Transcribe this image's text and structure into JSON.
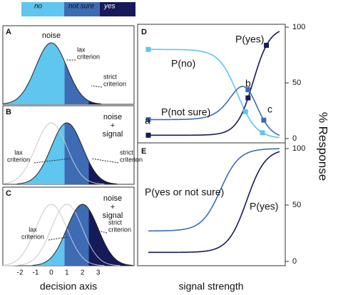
{
  "legend": {
    "labels": [
      "no",
      "not sure",
      "yes"
    ]
  },
  "panel_a": {
    "label": "A",
    "title": [
      "noise"
    ],
    "lax": [
      "lax",
      "criterion"
    ],
    "strict": [
      "strict",
      "criterion"
    ]
  },
  "panel_b": {
    "label": "B",
    "title": [
      "noise",
      "+",
      "signal"
    ],
    "lax": [
      "lax",
      "criterion"
    ],
    "strict": [
      "strict",
      "criterion"
    ]
  },
  "panel_c": {
    "label": "C",
    "title": [
      "noise",
      "+",
      "signal"
    ],
    "lax": [
      "lax",
      "criterion"
    ],
    "strict": [
      "strict",
      "criterion"
    ]
  },
  "decision_axis": {
    "label": "decision axis",
    "xlim": [
      -3.1,
      5.3
    ],
    "xticks": [
      -2,
      -1,
      0,
      1,
      2,
      3
    ]
  },
  "panel_d": {
    "label": "D",
    "curves": [
      "P(no)",
      "P(not sure)",
      "P(yes)"
    ],
    "points": [
      "a",
      "b",
      "c"
    ],
    "ylim": [
      0,
      100
    ],
    "yticks": [
      0,
      50,
      100
    ]
  },
  "panel_e": {
    "label": "E",
    "curves": [
      "P(yes or not sure)",
      "P(yes)"
    ],
    "ylim": [
      0,
      100
    ],
    "yticks": [
      0,
      50,
      100
    ]
  },
  "y_axis_label": "% Response",
  "x_axis_label": "signal strength"
}
